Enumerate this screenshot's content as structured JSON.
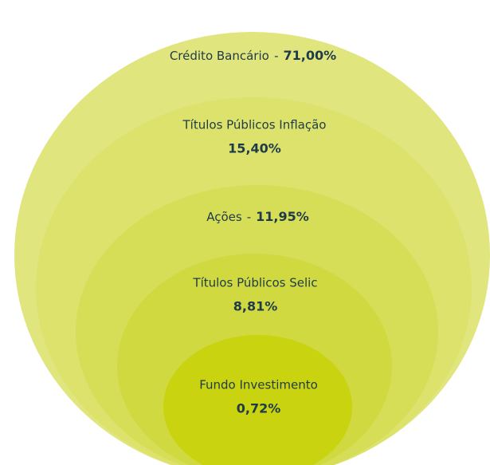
{
  "chart_data": {
    "type": "nested-circles",
    "categories": [
      "Crédito Bancário",
      "Títulos Públicos Inflação",
      "Ações",
      "Títulos Públicos Selic",
      "Fundo Investimento"
    ],
    "values": [
      71.0,
      15.4,
      11.95,
      8.81,
      0.72
    ],
    "value_labels": [
      "71,00%",
      "15,40%",
      "11,95%",
      "8,81%",
      "0,72%"
    ],
    "label_separator": "-",
    "colors": [
      "#e1e57e",
      "#dce26b",
      "#d6de57",
      "#d0d93f",
      "#c9d30f"
    ]
  }
}
